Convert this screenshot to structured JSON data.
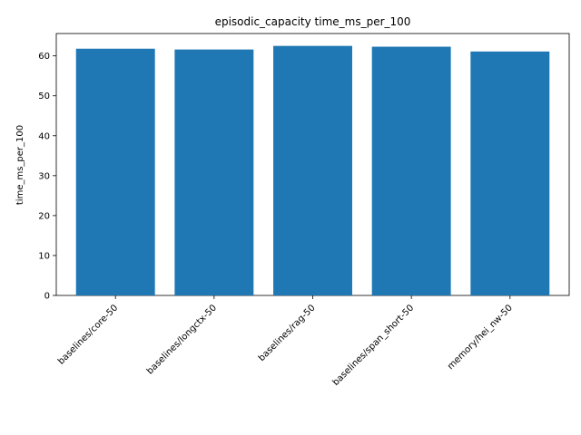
{
  "chart_data": {
    "type": "bar",
    "title": "episodic_capacity time_ms_per_100",
    "xlabel": "",
    "ylabel": "time_ms_per_100",
    "categories": [
      "baselines/core-50",
      "baselines/longctx-50",
      "baselines/rag-50",
      "baselines/span_short-50",
      "memory/hei_nw-50"
    ],
    "values": [
      61.8,
      61.6,
      62.5,
      62.3,
      61.1
    ],
    "ylim": [
      0,
      65.6
    ],
    "yticks": [
      0,
      10,
      20,
      30,
      40,
      50,
      60
    ],
    "bar_color": "#1f77b4",
    "grid": false,
    "legend": "none"
  }
}
